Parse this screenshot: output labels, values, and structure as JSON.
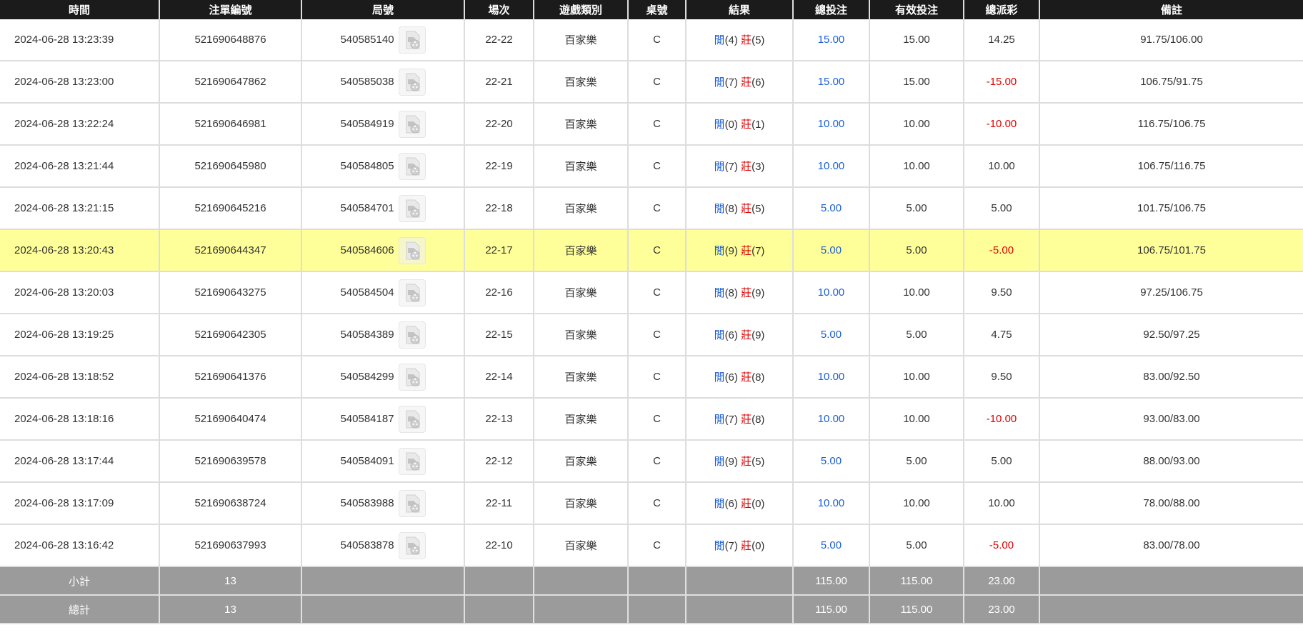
{
  "headers": [
    "時間",
    "注單編號",
    "局號",
    "場次",
    "遊戲類別",
    "桌號",
    "結果",
    "總投注",
    "有效投注",
    "總派彩",
    "備註"
  ],
  "colors": {
    "player": "#1a5fd8",
    "banker": "#e00000",
    "highlight": "#ffff99",
    "header_bg": "#1b1b1b",
    "footer_bg": "#9b9b9b"
  },
  "result_labels": {
    "player": "閒",
    "banker": "莊"
  },
  "highlighted_row": 5,
  "rows": [
    {
      "time": "2024-06-28 13:23:39",
      "bet_id": "521690648876",
      "round_id": "540585140",
      "shoe": "22-22",
      "game": "百家樂",
      "table": "C",
      "player": "(4)",
      "banker": "(5)",
      "total_bet": "15.00",
      "valid_bet": "15.00",
      "payout": "14.25",
      "payout_negative": false,
      "note": "91.75/106.00"
    },
    {
      "time": "2024-06-28 13:23:00",
      "bet_id": "521690647862",
      "round_id": "540585038",
      "shoe": "22-21",
      "game": "百家樂",
      "table": "C",
      "player": "(7)",
      "banker": "(6)",
      "total_bet": "15.00",
      "valid_bet": "15.00",
      "payout": "-15.00",
      "payout_negative": true,
      "note": "106.75/91.75"
    },
    {
      "time": "2024-06-28 13:22:24",
      "bet_id": "521690646981",
      "round_id": "540584919",
      "shoe": "22-20",
      "game": "百家樂",
      "table": "C",
      "player": "(0)",
      "banker": "(1)",
      "total_bet": "10.00",
      "valid_bet": "10.00",
      "payout": "-10.00",
      "payout_negative": true,
      "note": "116.75/106.75"
    },
    {
      "time": "2024-06-28 13:21:44",
      "bet_id": "521690645980",
      "round_id": "540584805",
      "shoe": "22-19",
      "game": "百家樂",
      "table": "C",
      "player": "(7)",
      "banker": "(3)",
      "total_bet": "10.00",
      "valid_bet": "10.00",
      "payout": "10.00",
      "payout_negative": false,
      "note": "106.75/116.75"
    },
    {
      "time": "2024-06-28 13:21:15",
      "bet_id": "521690645216",
      "round_id": "540584701",
      "shoe": "22-18",
      "game": "百家樂",
      "table": "C",
      "player": "(8)",
      "banker": "(5)",
      "total_bet": "5.00",
      "valid_bet": "5.00",
      "payout": "5.00",
      "payout_negative": false,
      "note": "101.75/106.75"
    },
    {
      "time": "2024-06-28 13:20:43",
      "bet_id": "521690644347",
      "round_id": "540584606",
      "shoe": "22-17",
      "game": "百家樂",
      "table": "C",
      "player": "(9)",
      "banker": "(7)",
      "total_bet": "5.00",
      "valid_bet": "5.00",
      "payout": "-5.00",
      "payout_negative": true,
      "note": "106.75/101.75"
    },
    {
      "time": "2024-06-28 13:20:03",
      "bet_id": "521690643275",
      "round_id": "540584504",
      "shoe": "22-16",
      "game": "百家樂",
      "table": "C",
      "player": "(8)",
      "banker": "(9)",
      "total_bet": "10.00",
      "valid_bet": "10.00",
      "payout": "9.50",
      "payout_negative": false,
      "note": "97.25/106.75"
    },
    {
      "time": "2024-06-28 13:19:25",
      "bet_id": "521690642305",
      "round_id": "540584389",
      "shoe": "22-15",
      "game": "百家樂",
      "table": "C",
      "player": "(6)",
      "banker": "(9)",
      "total_bet": "5.00",
      "valid_bet": "5.00",
      "payout": "4.75",
      "payout_negative": false,
      "note": "92.50/97.25"
    },
    {
      "time": "2024-06-28 13:18:52",
      "bet_id": "521690641376",
      "round_id": "540584299",
      "shoe": "22-14",
      "game": "百家樂",
      "table": "C",
      "player": "(6)",
      "banker": "(8)",
      "total_bet": "10.00",
      "valid_bet": "10.00",
      "payout": "9.50",
      "payout_negative": false,
      "note": "83.00/92.50"
    },
    {
      "time": "2024-06-28 13:18:16",
      "bet_id": "521690640474",
      "round_id": "540584187",
      "shoe": "22-13",
      "game": "百家樂",
      "table": "C",
      "player": "(7)",
      "banker": "(8)",
      "total_bet": "10.00",
      "valid_bet": "10.00",
      "payout": "-10.00",
      "payout_negative": true,
      "note": "93.00/83.00"
    },
    {
      "time": "2024-06-28 13:17:44",
      "bet_id": "521690639578",
      "round_id": "540584091",
      "shoe": "22-12",
      "game": "百家樂",
      "table": "C",
      "player": "(9)",
      "banker": "(5)",
      "total_bet": "5.00",
      "valid_bet": "5.00",
      "payout": "5.00",
      "payout_negative": false,
      "note": "88.00/93.00"
    },
    {
      "time": "2024-06-28 13:17:09",
      "bet_id": "521690638724",
      "round_id": "540583988",
      "shoe": "22-11",
      "game": "百家樂",
      "table": "C",
      "player": "(6)",
      "banker": "(0)",
      "total_bet": "10.00",
      "valid_bet": "10.00",
      "payout": "10.00",
      "payout_negative": false,
      "note": "78.00/88.00"
    },
    {
      "time": "2024-06-28 13:16:42",
      "bet_id": "521690637993",
      "round_id": "540583878",
      "shoe": "22-10",
      "game": "百家樂",
      "table": "C",
      "player": "(7)",
      "banker": "(0)",
      "total_bet": "5.00",
      "valid_bet": "5.00",
      "payout": "-5.00",
      "payout_negative": true,
      "note": "83.00/78.00"
    }
  ],
  "footer": [
    {
      "label": "小計",
      "count": "13",
      "total_bet": "115.00",
      "valid_bet": "115.00",
      "payout": "23.00"
    },
    {
      "label": "總計",
      "count": "13",
      "total_bet": "115.00",
      "valid_bet": "115.00",
      "payout": "23.00"
    }
  ]
}
